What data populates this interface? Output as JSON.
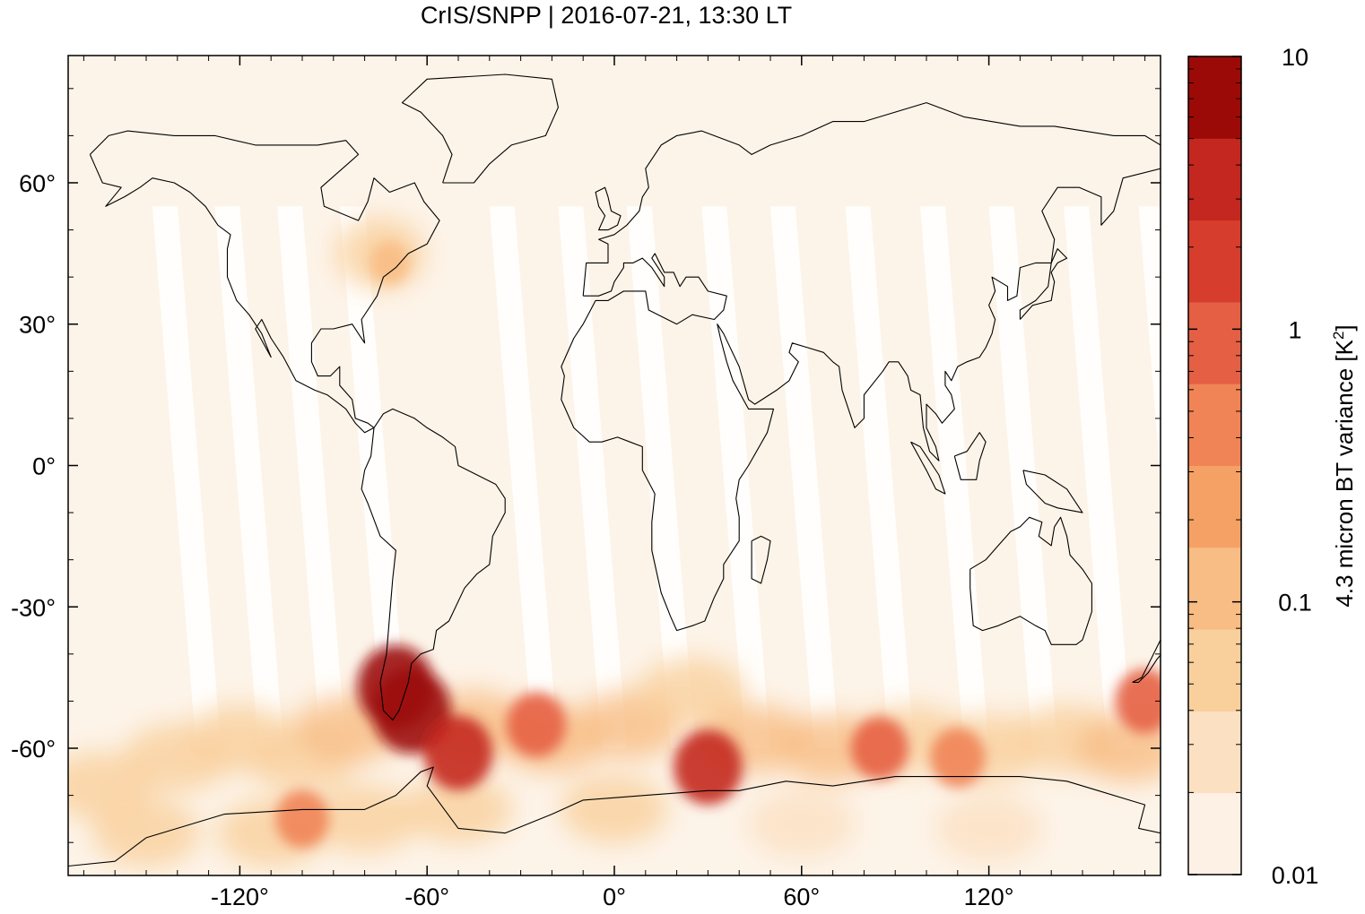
{
  "title": "CrIS/SNPP | 2016-07-21, 13:30 LT",
  "map": {
    "projection": "equirectangular",
    "lon_range": [
      -175,
      175
    ],
    "lat_range": [
      -87,
      87
    ],
    "x_ticks": [
      -120,
      -60,
      0,
      60,
      120
    ],
    "y_ticks": [
      60,
      30,
      0,
      -30,
      -60
    ],
    "x_tick_labels": [
      "-120°",
      "-60°",
      "0°",
      "60°",
      "120°"
    ],
    "y_tick_labels": [
      "60°",
      "30°",
      "0°",
      "-30°",
      "-60°"
    ],
    "background_color": "#fdf4e9",
    "gap_color": "#ffffff",
    "coastline_color": "#000000"
  },
  "colorbar": {
    "label": "4.3 micron BT variance [K",
    "label_superscript": "2",
    "label_suffix": "]",
    "scale": "log",
    "range": [
      0.01,
      10
    ],
    "tick_labels": [
      "10",
      "1",
      "0.1",
      "0.01"
    ],
    "colors": [
      "#fdf0e4",
      "#fbe0c2",
      "#f9cf9c",
      "#f8bd84",
      "#f5a165",
      "#f08456",
      "#e55f44",
      "#d73d2c",
      "#c4271f",
      "#9c0a08"
    ]
  },
  "chart_data": {
    "type": "heatmap",
    "title": "CrIS/SNPP | 2016-07-21, 13:30 LT",
    "xlabel": "",
    "ylabel": "",
    "x_range": [
      -175,
      175
    ],
    "y_range": [
      -87,
      87
    ],
    "colorbar_label": "4.3 micron BT variance [K2]",
    "color_scale": "log",
    "color_range": [
      0.01,
      10
    ],
    "hotspots": [
      {
        "lon": -65,
        "lat": -52,
        "variance": 10
      },
      {
        "lon": -70,
        "lat": -47,
        "variance": 8
      },
      {
        "lon": -50,
        "lat": -61,
        "variance": 3
      },
      {
        "lon": 30,
        "lat": -64,
        "variance": 3
      },
      {
        "lon": -25,
        "lat": -55,
        "variance": 1
      },
      {
        "lon": -100,
        "lat": -75,
        "variance": 0.5
      },
      {
        "lon": 170,
        "lat": -50,
        "variance": 1
      },
      {
        "lon": 85,
        "lat": -60,
        "variance": 0.8
      },
      {
        "lon": 110,
        "lat": -62,
        "variance": 0.6
      },
      {
        "lon": -72,
        "lat": 43,
        "variance": 0.1
      }
    ]
  }
}
